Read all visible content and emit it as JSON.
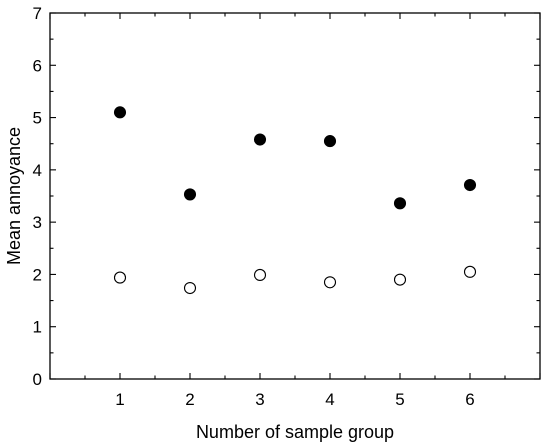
{
  "chart_data": {
    "type": "scatter",
    "xlabel": "Number of sample group",
    "ylabel": "Mean annoyance",
    "xlim": [
      0,
      7
    ],
    "ylim": [
      0,
      7
    ],
    "x_ticks": [
      "1",
      "2",
      "3",
      "4",
      "5",
      "6"
    ],
    "y_ticks": [
      "0",
      "1",
      "2",
      "3",
      "4",
      "5",
      "6",
      "7"
    ],
    "grid": false,
    "series": [
      {
        "marker": "filled-circle",
        "color": "#000000",
        "x": [
          1,
          2,
          3,
          4,
          5,
          6
        ],
        "y": [
          5.1,
          3.53,
          4.58,
          4.55,
          3.36,
          3.71
        ]
      },
      {
        "marker": "open-circle",
        "color": "#000000",
        "x": [
          1,
          2,
          3,
          4,
          5,
          6
        ],
        "y": [
          1.94,
          1.74,
          1.99,
          1.85,
          1.9,
          2.05
        ]
      }
    ]
  }
}
